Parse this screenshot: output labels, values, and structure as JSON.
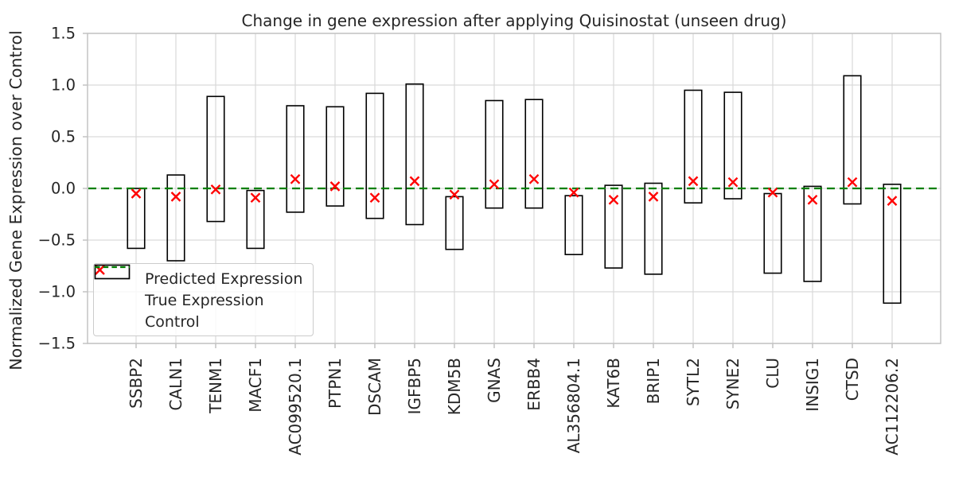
{
  "title": "Change in gene expression after applying Quisinostat (unseen drug)",
  "ylabel": "Normalized Gene Expression over Control",
  "legend": {
    "position": "lower left",
    "items": [
      {
        "label": "Predicted Expression",
        "marker": "red-x"
      },
      {
        "label": "True Expression",
        "marker": "open-rect"
      },
      {
        "label": "Control",
        "marker": "green-dashed-line"
      }
    ]
  },
  "colors": {
    "predicted_marker": "#ff0000",
    "true_bar_stroke": "#000000",
    "control_line": "#008000",
    "grid": "#d9d9d9",
    "spine": "#c3c3c3",
    "text": "#262626",
    "background": "#ffffff"
  },
  "chart_data": {
    "type": "bar",
    "subtype": "range-bars with scatter overlay and control hline",
    "title": "Change in gene expression after applying Quisinostat (unseen drug)",
    "xlabel": "",
    "ylabel": "Normalized Gene Expression over Control",
    "ylim": [
      -1.5,
      1.5
    ],
    "yticks": [
      1.5,
      1.0,
      0.5,
      0.0,
      -0.5,
      -1.0,
      -1.5
    ],
    "grid": true,
    "legend_position": "lower left",
    "categories": [
      "SSBP2",
      "CALN1",
      "TENM1",
      "MACF1",
      "AC099520.1",
      "PTPN1",
      "DSCAM",
      "IGFBP5",
      "KDM5B",
      "GNAS",
      "ERBB4",
      "AL356804.1",
      "KAT6B",
      "BRIP1",
      "SYTL2",
      "SYNE2",
      "CLU",
      "INSIG1",
      "CTSD",
      "AC112206.2"
    ],
    "series": [
      {
        "name": "True Expression",
        "type": "range-bar",
        "color": "#000000",
        "low": [
          -0.58,
          -0.7,
          -0.32,
          -0.58,
          -0.23,
          -0.17,
          -0.29,
          -0.35,
          -0.59,
          -0.19,
          -0.19,
          -0.64,
          -0.77,
          -0.83,
          -0.14,
          -0.1,
          -0.82,
          -0.9,
          -0.15,
          -1.11
        ],
        "high": [
          0.0,
          0.13,
          0.89,
          -0.02,
          0.8,
          0.79,
          0.92,
          1.01,
          -0.08,
          0.85,
          0.86,
          -0.07,
          0.03,
          0.05,
          0.95,
          0.93,
          -0.05,
          0.02,
          1.09,
          0.04
        ]
      },
      {
        "name": "Predicted Expression",
        "type": "scatter",
        "marker": "x",
        "color": "#ff0000",
        "values": [
          -0.05,
          -0.08,
          -0.01,
          -0.09,
          0.09,
          0.02,
          -0.09,
          0.07,
          -0.06,
          0.04,
          0.09,
          -0.04,
          -0.11,
          -0.08,
          0.07,
          0.06,
          -0.04,
          -0.11,
          0.06,
          -0.12
        ]
      },
      {
        "name": "Control",
        "type": "hline",
        "style": "dashed",
        "color": "#008000",
        "value": 0.0
      }
    ]
  }
}
